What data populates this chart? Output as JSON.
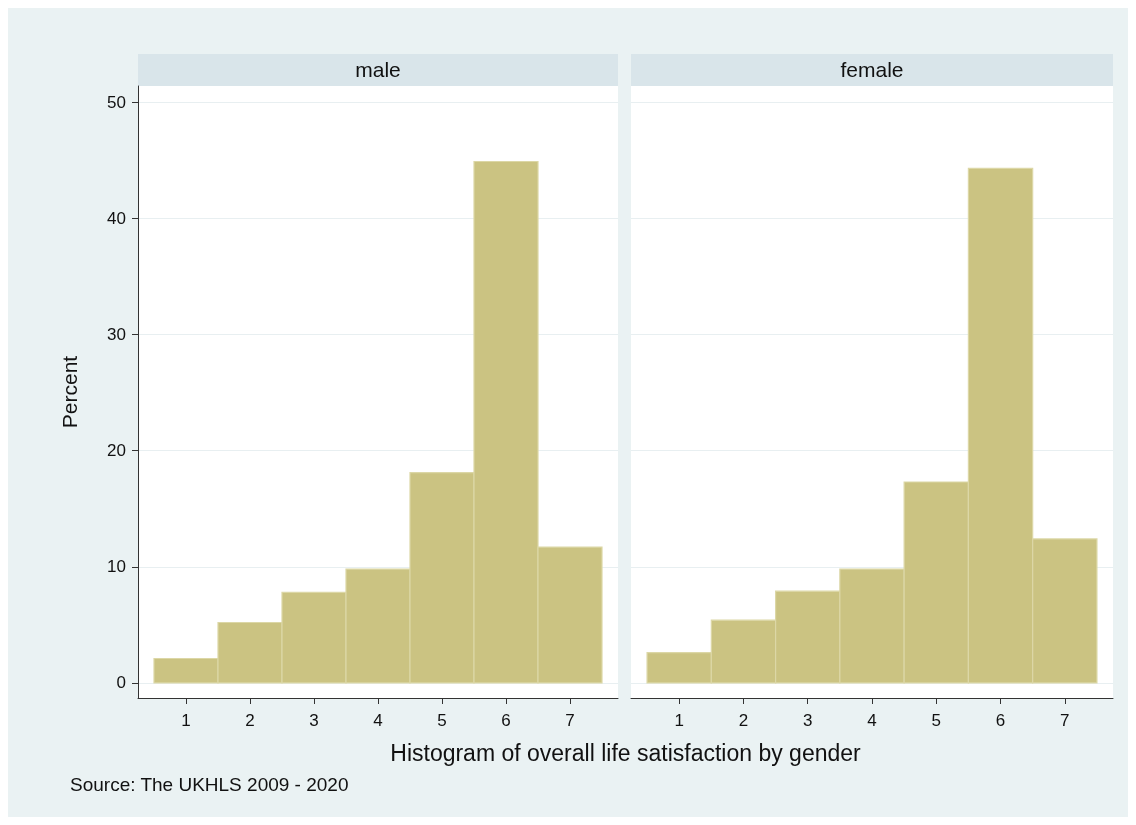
{
  "chart_data": [
    {
      "type": "histogram",
      "title": "male",
      "ylabel": "Percent",
      "xlabel": "Histogram of overall life satisfaction by gender",
      "annotations": [
        "Source: The UKHLS 2009 - 2020"
      ],
      "bins": [
        0.5,
        1.5,
        2.5,
        3.5,
        4.5,
        5.5,
        6.5,
        7.5
      ],
      "values": [
        2.1,
        5.2,
        7.8,
        9.8,
        18.1,
        44.9,
        11.7
      ],
      "color": "#cbc382",
      "xlim": [
        0.25,
        7.75
      ],
      "xticks": [
        1,
        2,
        3,
        4,
        5,
        6,
        7
      ],
      "ylim": [
        -1.3,
        51.4
      ],
      "yticks": [
        0,
        10,
        20,
        30,
        40,
        50
      ],
      "grid": "y"
    },
    {
      "type": "histogram",
      "title": "female",
      "bins": [
        0.5,
        1.5,
        2.5,
        3.5,
        4.5,
        5.5,
        6.5,
        7.5
      ],
      "values": [
        2.6,
        5.4,
        7.9,
        9.8,
        17.3,
        44.3,
        12.4
      ],
      "color": "#cbc382",
      "xlim": [
        0.25,
        7.75
      ],
      "xticks": [
        1,
        2,
        3,
        4,
        5,
        6,
        7
      ],
      "ylim": [
        -1.3,
        51.4
      ],
      "yticks": [
        0,
        10,
        20,
        30,
        40,
        50
      ],
      "grid": "y",
      "tick_labels": "x"
    }
  ]
}
